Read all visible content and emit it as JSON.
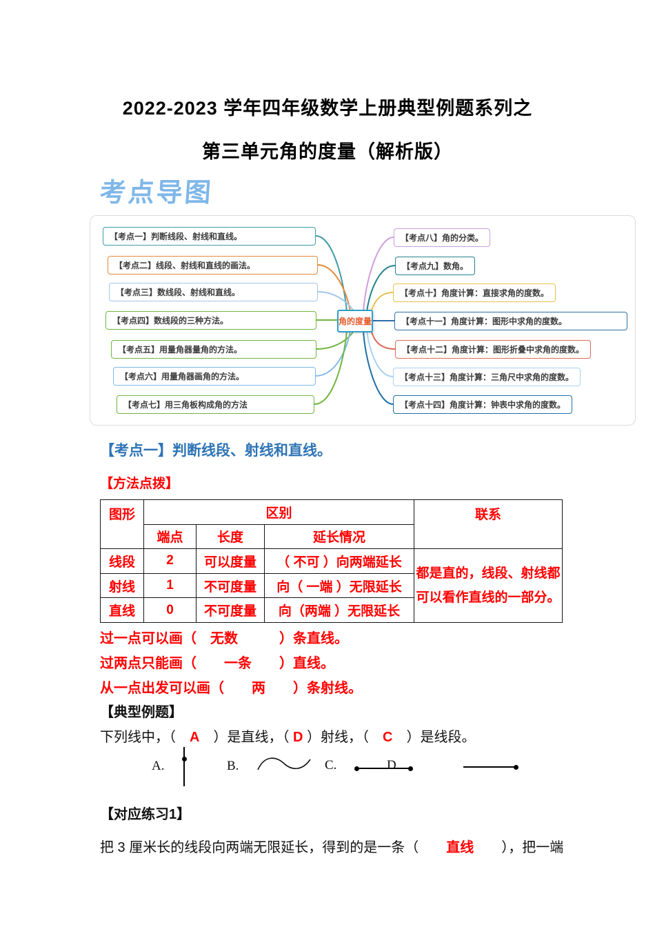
{
  "title": {
    "line1": "2022-2023 学年四年级数学上册典型例题系列之",
    "line2": "第三单元角的度量（解析版）"
  },
  "map_header": "考点导图",
  "mindmap": {
    "center": "角的度量",
    "center_text_color": "#E65C2E",
    "center_border_color": "#2D9EC6",
    "left_topics": [
      {
        "label": "【考点一】判断线段、射线和直线。",
        "color": "#3D9CA8"
      },
      {
        "label": "【考点二】线段、射线和直线的画法。",
        "color": "#E2893B"
      },
      {
        "label": "【考点三】数线段、射线和直线。",
        "color": "#A3C6E8"
      },
      {
        "label": "【考点四】数线段的三种方法。",
        "color": "#6FB53F"
      },
      {
        "label": "【考点五】用量角器量角的方法。",
        "color": "#6FB53F"
      },
      {
        "label": "【考点六】用量角器画角的方法。",
        "color": "#7FB8EC"
      },
      {
        "label": "【考点七】用三角板构成角的方法",
        "color": "#6FB53F"
      }
    ],
    "right_topics": [
      {
        "label": "【考点八】角的分类。",
        "color": "#CD9FDD"
      },
      {
        "label": "【考点九】数角。",
        "color": "#23828F"
      },
      {
        "label": "【考点十】角度计算：直接求角的度数。",
        "color": "#E9C04A"
      },
      {
        "label": "【考点十一】角度计算：图形中求角的度数。",
        "color": "#2C6FA8"
      },
      {
        "label": "【考点十二】角度计算：图形折叠中求角的度数。",
        "color": "#D96A57"
      },
      {
        "label": "【考点十三】角度计算：三角尺中求角的度数。",
        "color": "#A9D2F4"
      },
      {
        "label": "【考点十四】角度计算：钟表中求角的度数。",
        "color": "#1E6FA6"
      }
    ]
  },
  "section1": {
    "heading": "【考点一】判断线段、射线和直线。",
    "method_label": "【方法点拨】"
  },
  "table": {
    "headers": {
      "shape": "图形",
      "difference": "区别",
      "relation": "联系",
      "endpoints": "端点",
      "length": "长度",
      "extension": "延长情况"
    },
    "rows": [
      {
        "name": "线段",
        "endpoints": "2",
        "length": "可以度量",
        "extension": "（ 不可 ）向两端延长"
      },
      {
        "name": "射线",
        "endpoints": "1",
        "length": "不可度量",
        "extension": "向（ 一端 ）无限延长"
      },
      {
        "name": "直线",
        "endpoints": "0",
        "length": "不可度量",
        "extension": "向（两端 ）无限延长"
      }
    ],
    "relation_text": "都是直的，线段、射线都可以看作直线的一部分。"
  },
  "notes": [
    "过一点可以画（　无数　　　）条直线。",
    "过两点只能画（　　一条　　）直线。",
    "从一点出发可以画（　　两　　）条射线。"
  ],
  "example": {
    "heading": "【典型例题】",
    "question_parts": [
      {
        "text": "下列线中，（　"
      },
      {
        "text": "A",
        "red": true
      },
      {
        "text": "　）是直线，（ "
      },
      {
        "text": "D",
        "red": true
      },
      {
        "text": " ）射线，（　"
      },
      {
        "text": "C",
        "red": true
      },
      {
        "text": "　）是线段。"
      }
    ],
    "options": [
      "A.",
      "B.",
      "C.",
      "D."
    ]
  },
  "practice": {
    "heading": "【对应练习1】",
    "text_parts": [
      {
        "text": "把 3 厘米长的线段向两端无限延长，得到的是一条（　　"
      },
      {
        "text": "直线",
        "red": true
      },
      {
        "text": "　　），把一端"
      }
    ]
  }
}
